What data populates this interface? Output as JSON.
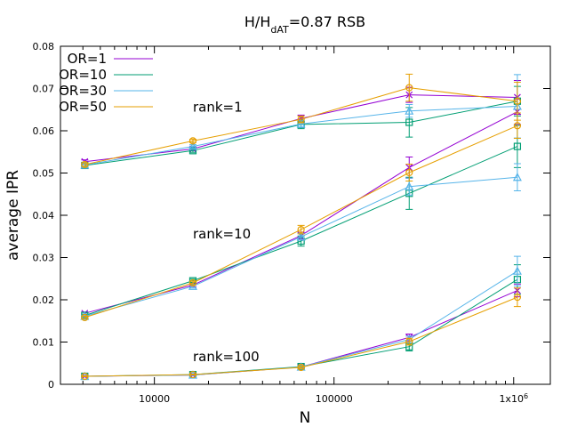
{
  "chart_data": {
    "type": "line",
    "title_main": "H/H",
    "title_sub": "dAT",
    "title_rest": "=0.87 RSB",
    "xlabel": "N",
    "ylabel": "average IPR",
    "xscale": "log",
    "xlim": [
      3000,
      1600000
    ],
    "ylim": [
      0,
      0.08
    ],
    "x_ticks": [
      {
        "value": 10000,
        "label": "10000",
        "sup": ""
      },
      {
        "value": 100000,
        "label": "100000",
        "sup": ""
      },
      {
        "value": 1000000,
        "label": "1x10",
        "sup": "6"
      }
    ],
    "y_ticks": [
      {
        "value": 0,
        "label": "0"
      },
      {
        "value": 0.01,
        "label": "0.01"
      },
      {
        "value": 0.02,
        "label": "0.02"
      },
      {
        "value": 0.03,
        "label": "0.03"
      },
      {
        "value": 0.04,
        "label": "0.04"
      },
      {
        "value": 0.05,
        "label": "0.05"
      },
      {
        "value": 0.06,
        "label": "0.06"
      },
      {
        "value": 0.07,
        "label": "0.07"
      },
      {
        "value": 0.08,
        "label": "0.08"
      }
    ],
    "x": [
      4096,
      16384,
      65536,
      262144,
      1048576
    ],
    "legend_position": "top-left",
    "annotations": [
      {
        "text": "rank=1",
        "x": 16384,
        "y": 0.0645
      },
      {
        "text": "rank=10",
        "x": 16384,
        "y": 0.0345
      },
      {
        "text": "rank=100",
        "x": 16384,
        "y": 0.0055
      }
    ],
    "series": [
      {
        "name": "OR=1",
        "color": "#9400d3",
        "marker": "x",
        "groups": [
          {
            "rank": "rank=1",
            "values": [
              0.0527,
              0.0557,
              0.0629,
              0.0685,
              0.0679
            ],
            "errors": [
              0.0004,
              0.0004,
              0.0008,
              0.0018,
              0.004
            ]
          },
          {
            "rank": "rank=10",
            "values": [
              0.0168,
              0.0235,
              0.0352,
              0.0513,
              0.0645
            ],
            "errors": [
              0.0003,
              0.0004,
              0.0008,
              0.0025,
              0.003
            ]
          },
          {
            "rank": "rank=100",
            "values": [
              0.0019,
              0.0022,
              0.0041,
              0.0111,
              0.0222
            ],
            "errors": [
              0.0001,
              0.0001,
              0.0003,
              0.0008,
              0.0015
            ]
          }
        ]
      },
      {
        "name": "OR=10",
        "color": "#009e73",
        "marker": "square",
        "groups": [
          {
            "rank": "rank=1",
            "values": [
              0.0518,
              0.0553,
              0.0615,
              0.062,
              0.067
            ],
            "errors": [
              0.0004,
              0.0004,
              0.001,
              0.0035,
              0.0035
            ]
          },
          {
            "rank": "rank=10",
            "values": [
              0.0163,
              0.0245,
              0.0339,
              0.0452,
              0.0563
            ],
            "errors": [
              0.0003,
              0.0004,
              0.0012,
              0.0038,
              0.005
            ]
          },
          {
            "rank": "rank=100",
            "values": [
              0.0019,
              0.0023,
              0.0042,
              0.0089,
              0.0248
            ],
            "errors": [
              0.0001,
              0.0001,
              0.0003,
              0.001,
              0.0035
            ]
          }
        ]
      },
      {
        "name": "OR=30",
        "color": "#56b4e9",
        "marker": "triangle",
        "groups": [
          {
            "rank": "rank=1",
            "values": [
              0.0519,
              0.0563,
              0.0616,
              0.0647,
              0.0658
            ],
            "errors": [
              0.0004,
              0.0004,
              0.0008,
              0.0015,
              0.0075
            ]
          },
          {
            "rank": "rank=10",
            "values": [
              0.0161,
              0.0232,
              0.0349,
              0.0468,
              0.049
            ],
            "errors": [
              0.0003,
              0.0004,
              0.0008,
              0.002,
              0.0032
            ]
          },
          {
            "rank": "rank=100",
            "values": [
              0.0019,
              0.0022,
              0.0041,
              0.0106,
              0.0268
            ],
            "errors": [
              0.0001,
              0.0001,
              0.0003,
              0.0008,
              0.0035
            ]
          }
        ]
      },
      {
        "name": "OR=50",
        "color": "#e69f00",
        "marker": "circle",
        "groups": [
          {
            "rank": "rank=1",
            "values": [
              0.052,
              0.0576,
              0.0627,
              0.0702,
              0.067
            ],
            "errors": [
              0.0004,
              0.0004,
              0.0008,
              0.0032,
              0.0045
            ]
          },
          {
            "rank": "rank=10",
            "values": [
              0.0158,
              0.024,
              0.0366,
              0.0501,
              0.0612
            ],
            "errors": [
              0.0003,
              0.0004,
              0.001,
              0.002,
              0.003
            ]
          },
          {
            "rank": "rank=100",
            "values": [
              0.0019,
              0.0023,
              0.004,
              0.0101,
              0.0206
            ],
            "errors": [
              0.0001,
              0.0001,
              0.0003,
              0.0008,
              0.0022
            ]
          }
        ]
      }
    ]
  }
}
